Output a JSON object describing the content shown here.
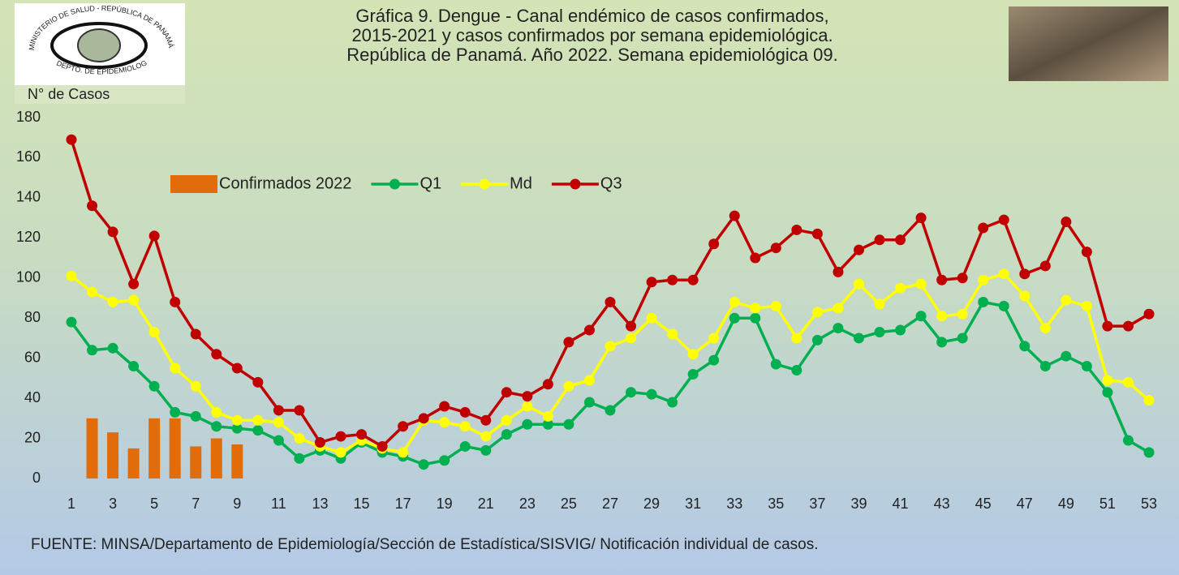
{
  "header": {
    "logo_top": "MINISTERIO DE SALUD - REPÚBLICA DE PANAMÁ",
    "logo_bottom": "DEPTO. DE EPIDEMIOLOGÍA"
  },
  "chart_data": {
    "type": "line",
    "title": [
      "Gráfica 9. Dengue - Canal endémico de casos confirmados,",
      "2015-2021 y casos confirmados por semana epidemiológica.",
      "República de Panamá. Año 2022. Semana epidemiológica 09."
    ],
    "y_label": "N° de Casos",
    "source": "FUENTE: MINSA/Departamento de Epidemiología/Sección de Estadística/SISVIG/ Notificación individual de casos.",
    "categories": [
      "1",
      null,
      "3",
      null,
      "5",
      null,
      "7",
      null,
      "9",
      null,
      "11",
      null,
      "13",
      null,
      "15",
      null,
      "17",
      null,
      "19",
      null,
      "21",
      null,
      "23",
      null,
      "25",
      null,
      "27",
      null,
      "29",
      null,
      "31",
      null,
      "33",
      null,
      "35",
      null,
      "37",
      null,
      "39",
      null,
      "41",
      null,
      "43",
      null,
      "45",
      null,
      "47",
      null,
      "49",
      null,
      "51",
      null,
      "53"
    ],
    "ylim": [
      0,
      180
    ],
    "yticks": [
      0,
      20,
      40,
      60,
      80,
      100,
      120,
      140,
      160,
      180
    ],
    "series": [
      {
        "name": "Confirmados 2022",
        "type": "bar",
        "color": "#e36c0a",
        "values": [
          null,
          30,
          23,
          15,
          30,
          30,
          16,
          20,
          17,
          null,
          null,
          null,
          null,
          null,
          null,
          null,
          null,
          null,
          null,
          null,
          null,
          null,
          null,
          null,
          null,
          null,
          null,
          null,
          null,
          null,
          null,
          null,
          null,
          null,
          null,
          null,
          null,
          null,
          null,
          null,
          null,
          null,
          null,
          null,
          null,
          null,
          null,
          null,
          null,
          null,
          null,
          null,
          null
        ]
      },
      {
        "name": "Q1",
        "type": "line",
        "color": "#00b050",
        "values": [
          78,
          64,
          65,
          56,
          46,
          33,
          31,
          26,
          25,
          24,
          19,
          10,
          14,
          10,
          18,
          13,
          11,
          7,
          9,
          16,
          14,
          22,
          27,
          27,
          27,
          38,
          34,
          43,
          42,
          38,
          52,
          59,
          80,
          80,
          57,
          54,
          69,
          75,
          70,
          73,
          74,
          81,
          68,
          70,
          88,
          86,
          66,
          56,
          61,
          56,
          43,
          19,
          13
        ]
      },
      {
        "name": "Md",
        "type": "line",
        "color": "#ffff00",
        "values": [
          101,
          93,
          88,
          89,
          73,
          55,
          46,
          33,
          29,
          29,
          28,
          20,
          16,
          13,
          19,
          15,
          13,
          29,
          28,
          26,
          21,
          29,
          36,
          31,
          46,
          49,
          66,
          70,
          80,
          72,
          62,
          70,
          88,
          85,
          86,
          70,
          83,
          85,
          97,
          87,
          95,
          97,
          81,
          82,
          99,
          102,
          91,
          75,
          89,
          86,
          49,
          48,
          39
        ]
      },
      {
        "name": "Q3",
        "type": "line",
        "color": "#c00000",
        "values": [
          169,
          136,
          123,
          97,
          121,
          88,
          72,
          62,
          55,
          48,
          34,
          34,
          18,
          21,
          22,
          16,
          26,
          30,
          36,
          33,
          29,
          43,
          41,
          47,
          68,
          74,
          88,
          76,
          98,
          99,
          99,
          117,
          131,
          110,
          115,
          124,
          122,
          103,
          114,
          119,
          119,
          130,
          99,
          100,
          125,
          129,
          102,
          106,
          128,
          113,
          76,
          76,
          82
        ]
      }
    ]
  }
}
